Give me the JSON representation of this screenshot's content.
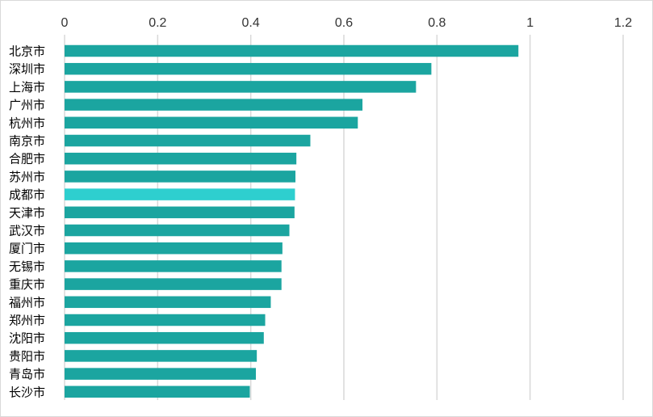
{
  "chart_data": {
    "type": "bar",
    "orientation": "horizontal",
    "title": "",
    "xlabel": "",
    "ylabel": "",
    "xlim": [
      0,
      1.2
    ],
    "x_ticks": [
      "0",
      "0.2",
      "0.4",
      "0.6",
      "0.8",
      "1",
      "1.2"
    ],
    "x_tick_values": [
      0,
      0.2,
      0.4,
      0.6,
      0.8,
      1.0,
      1.2
    ],
    "x_axis_position": "top",
    "grid": "vertical",
    "legend": "none",
    "categories": [
      "北京市",
      "深圳市",
      "上海市",
      "广州市",
      "杭州市",
      "南京市",
      "合肥市",
      "苏州市",
      "成都市",
      "天津市",
      "武汉市",
      "厦门市",
      "无锡市",
      "重庆市",
      "福州市",
      "郑州市",
      "沈阳市",
      "贵阳市",
      "青岛市",
      "长沙市"
    ],
    "values": [
      0.975,
      0.788,
      0.755,
      0.64,
      0.63,
      0.528,
      0.498,
      0.496,
      0.495,
      0.494,
      0.483,
      0.468,
      0.466,
      0.466,
      0.443,
      0.431,
      0.428,
      0.413,
      0.411,
      0.398
    ],
    "highlight_index": 8
  },
  "colors": {
    "bar": "#1ba5a0",
    "highlight": "#2ecfcf",
    "grid": "#d9d9d9",
    "border": "#d9d9d9"
  }
}
